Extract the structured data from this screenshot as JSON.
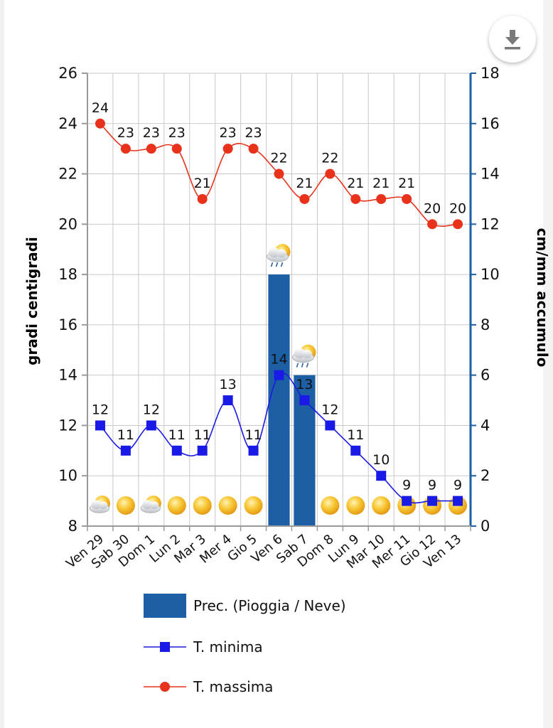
{
  "chart_data": {
    "type": "bar+line",
    "categories": [
      "Ven 29",
      "Sab 30",
      "Dom 1",
      "Lun 2",
      "Mar 3",
      "Mer 4",
      "Gio 5",
      "Ven 6",
      "Sab 7",
      "Dom 8",
      "Lun 9",
      "Mar 10",
      "Mer 11",
      "Gio 12",
      "Ven 13"
    ],
    "weather_icons": [
      "sun-cloud",
      "sun",
      "sun-cloud",
      "sun",
      "sun",
      "sun",
      "sun",
      "rain-sun",
      "rain-sun",
      "sun",
      "sun",
      "sun",
      "sun",
      "sun",
      "sun"
    ],
    "series": [
      {
        "name": "T. massima",
        "axis": "left",
        "kind": "line",
        "marker": "circle",
        "color": "#e8321c",
        "values": [
          24,
          23,
          23,
          23,
          21,
          23,
          23,
          22,
          21,
          22,
          21,
          21,
          21,
          20,
          20
        ]
      },
      {
        "name": "T. minima",
        "axis": "left",
        "kind": "line",
        "marker": "square",
        "color": "#1a1ae6",
        "values": [
          12,
          11,
          12,
          11,
          11,
          13,
          11,
          14,
          13,
          12,
          11,
          10,
          9,
          9,
          9
        ]
      },
      {
        "name": "Prec. (Pioggia / Neve)",
        "axis": "right",
        "kind": "bar",
        "color": "#1d5fa5",
        "values": [
          0,
          0,
          0,
          0,
          0,
          0,
          0,
          10,
          6,
          0,
          0,
          0,
          0,
          0,
          0
        ]
      }
    ],
    "ylabel_left": "gradi centigradi",
    "ylabel_right": "cm/mm accumulo",
    "ylim_left": [
      8,
      26
    ],
    "yticks_left": [
      8,
      10,
      12,
      14,
      16,
      18,
      20,
      22,
      24,
      26
    ],
    "ylim_right": [
      0,
      18
    ],
    "yticks_right": [
      0,
      2,
      4,
      6,
      8,
      10,
      12,
      14,
      16,
      18
    ],
    "grid": true,
    "legend_position": "bottom"
  },
  "legend": {
    "items": [
      {
        "label": "Prec. (Pioggia / Neve)",
        "color": "#1d5fa5"
      },
      {
        "label": "T. minima",
        "color": "#1a1ae6"
      },
      {
        "label": "T. massima",
        "color": "#e8321c"
      }
    ]
  },
  "download_button": {
    "icon": "download-icon"
  }
}
